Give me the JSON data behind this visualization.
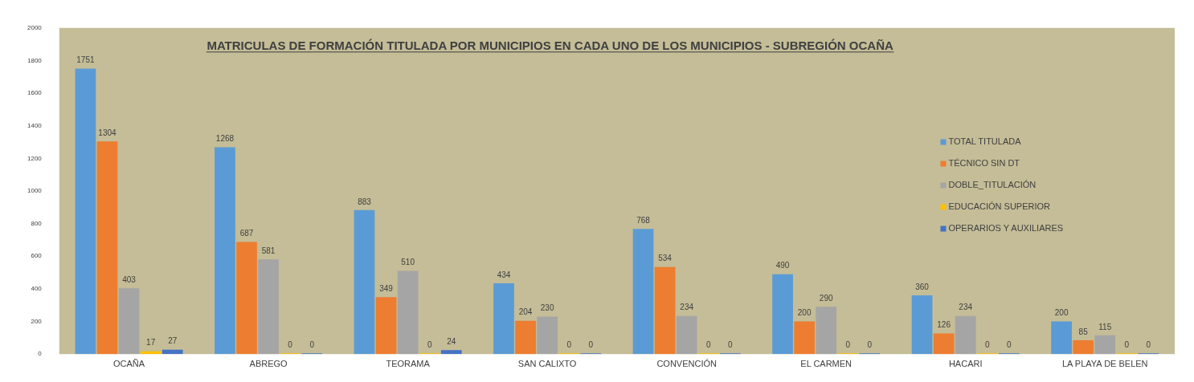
{
  "chart_data": {
    "type": "bar",
    "title": "MATRICULAS DE FORMACIÓN TITULADA POR MUNICIPIOS EN CADA UNO DE LOS MUNICIPIOS - SUBREGIÓN OCAÑA",
    "categories": [
      "OCAÑA",
      "ABREGO",
      "TEORAMA",
      "SAN CALIXTO",
      "CONVENCIÓN",
      "EL CARMEN",
      "HACARI",
      "LA PLAYA DE BELEN"
    ],
    "series": [
      {
        "name": "TOTAL TITULADA",
        "color": "#5b9bd5",
        "values": [
          1751,
          1268,
          883,
          434,
          768,
          490,
          360,
          200
        ]
      },
      {
        "name": "TÉCNICO SIN DT",
        "color": "#ed7d31",
        "values": [
          1304,
          687,
          349,
          204,
          534,
          200,
          126,
          85
        ]
      },
      {
        "name": "DOBLE_TITULACIÓN",
        "color": "#a5a5a5",
        "values": [
          403,
          581,
          510,
          230,
          234,
          290,
          234,
          115
        ]
      },
      {
        "name": "EDUCACIÓN SUPERIOR",
        "color": "#ffc000",
        "values": [
          17,
          0,
          0,
          0,
          0,
          0,
          0,
          0
        ]
      },
      {
        "name": "OPERARIOS Y AUXILIARES",
        "color": "#4472c4",
        "values": [
          27,
          0,
          24,
          0,
          0,
          0,
          0,
          0
        ]
      }
    ],
    "ylim": [
      0,
      2000
    ],
    "yticks": [
      0,
      200,
      400,
      600,
      800,
      1000,
      1200,
      1400,
      1600,
      1800,
      2000
    ],
    "grid": false,
    "legend": "right",
    "data_labels": true
  }
}
